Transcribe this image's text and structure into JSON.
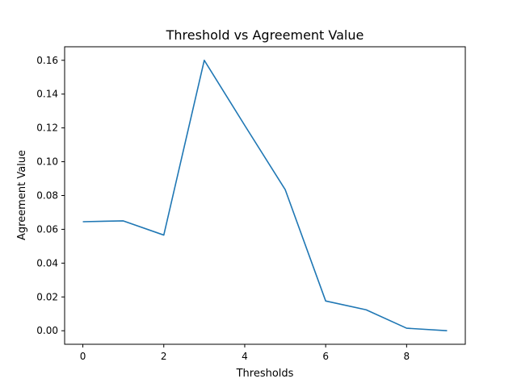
{
  "chart_data": {
    "type": "line",
    "title": "Threshold vs Agreement Value",
    "xlabel": "Thresholds",
    "ylabel": "Agreement Value",
    "xlim": [
      -0.45,
      9.45
    ],
    "ylim": [
      -0.008,
      0.168
    ],
    "xticks": [
      0,
      2,
      4,
      6,
      8
    ],
    "xtick_labels": [
      "0",
      "2",
      "4",
      "6",
      "8"
    ],
    "yticks": [
      0.0,
      0.02,
      0.04,
      0.06,
      0.08,
      0.1,
      0.12,
      0.14,
      0.16
    ],
    "ytick_labels": [
      "0.00",
      "0.02",
      "0.04",
      "0.06",
      "0.08",
      "0.10",
      "0.12",
      "0.14",
      "0.16"
    ],
    "grid": false,
    "series": [
      {
        "color": "#1f77b4",
        "x": [
          0,
          1,
          2,
          3,
          4,
          5,
          6,
          7,
          8,
          9
        ],
        "y": [
          0.0645,
          0.065,
          0.0566,
          0.16,
          0.1215,
          0.0835,
          0.0176,
          0.0124,
          0.0015,
          0.0
        ]
      }
    ]
  }
}
